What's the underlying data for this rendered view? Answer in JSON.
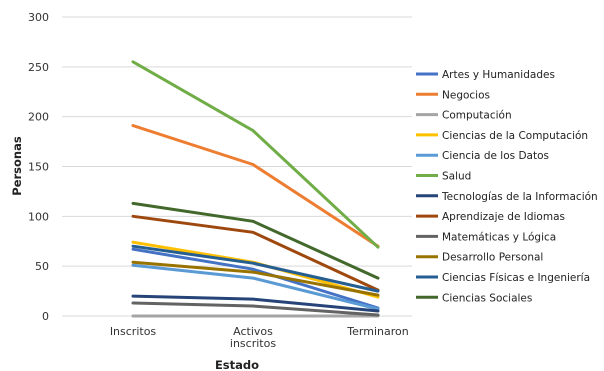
{
  "chart_data": {
    "type": "line",
    "title": "",
    "xlabel": "Estado",
    "ylabel": "Personas",
    "categories": [
      [
        "Inscritos"
      ],
      [
        "Activos",
        "inscritos"
      ],
      [
        "Terminaron"
      ]
    ],
    "ylim": [
      0,
      300
    ],
    "yticks": [
      0,
      50,
      100,
      150,
      200,
      250,
      300
    ],
    "grid": true,
    "legend_position": "right",
    "series": [
      {
        "name": "Artes y Humanidades",
        "color": "#4472C4",
        "values": [
          67,
          47,
          8
        ]
      },
      {
        "name": "Negocios",
        "color": "#ED7D31",
        "values": [
          191,
          152,
          70
        ]
      },
      {
        "name": "Computación",
        "color": "#A5A5A5",
        "values": [
          0,
          0,
          0
        ]
      },
      {
        "name": "Ciencias de la Computación",
        "color": "#FFC000",
        "values": [
          74,
          54,
          19
        ]
      },
      {
        "name": "Ciencia de los Datos",
        "color": "#5B9BD5",
        "values": [
          51,
          38,
          7
        ]
      },
      {
        "name": "Salud",
        "color": "#70AD47",
        "values": [
          255,
          186,
          69
        ]
      },
      {
        "name": "Tecnologías de la Información",
        "color": "#264478",
        "values": [
          20,
          17,
          5
        ]
      },
      {
        "name": "Aprendizaje de Idiomas",
        "color": "#9E480E",
        "values": [
          100,
          84,
          26
        ]
      },
      {
        "name": "Matemáticas y Lógica",
        "color": "#636363",
        "values": [
          13,
          10,
          1
        ]
      },
      {
        "name": "Desarrollo Personal",
        "color": "#997300",
        "values": [
          54,
          44,
          21
        ]
      },
      {
        "name": "Ciencias Físicas e Ingeniería",
        "color": "#255E91",
        "values": [
          70,
          53,
          25
        ]
      },
      {
        "name": "Ciencias Sociales",
        "color": "#43682B",
        "values": [
          113,
          95,
          38
        ]
      }
    ]
  }
}
